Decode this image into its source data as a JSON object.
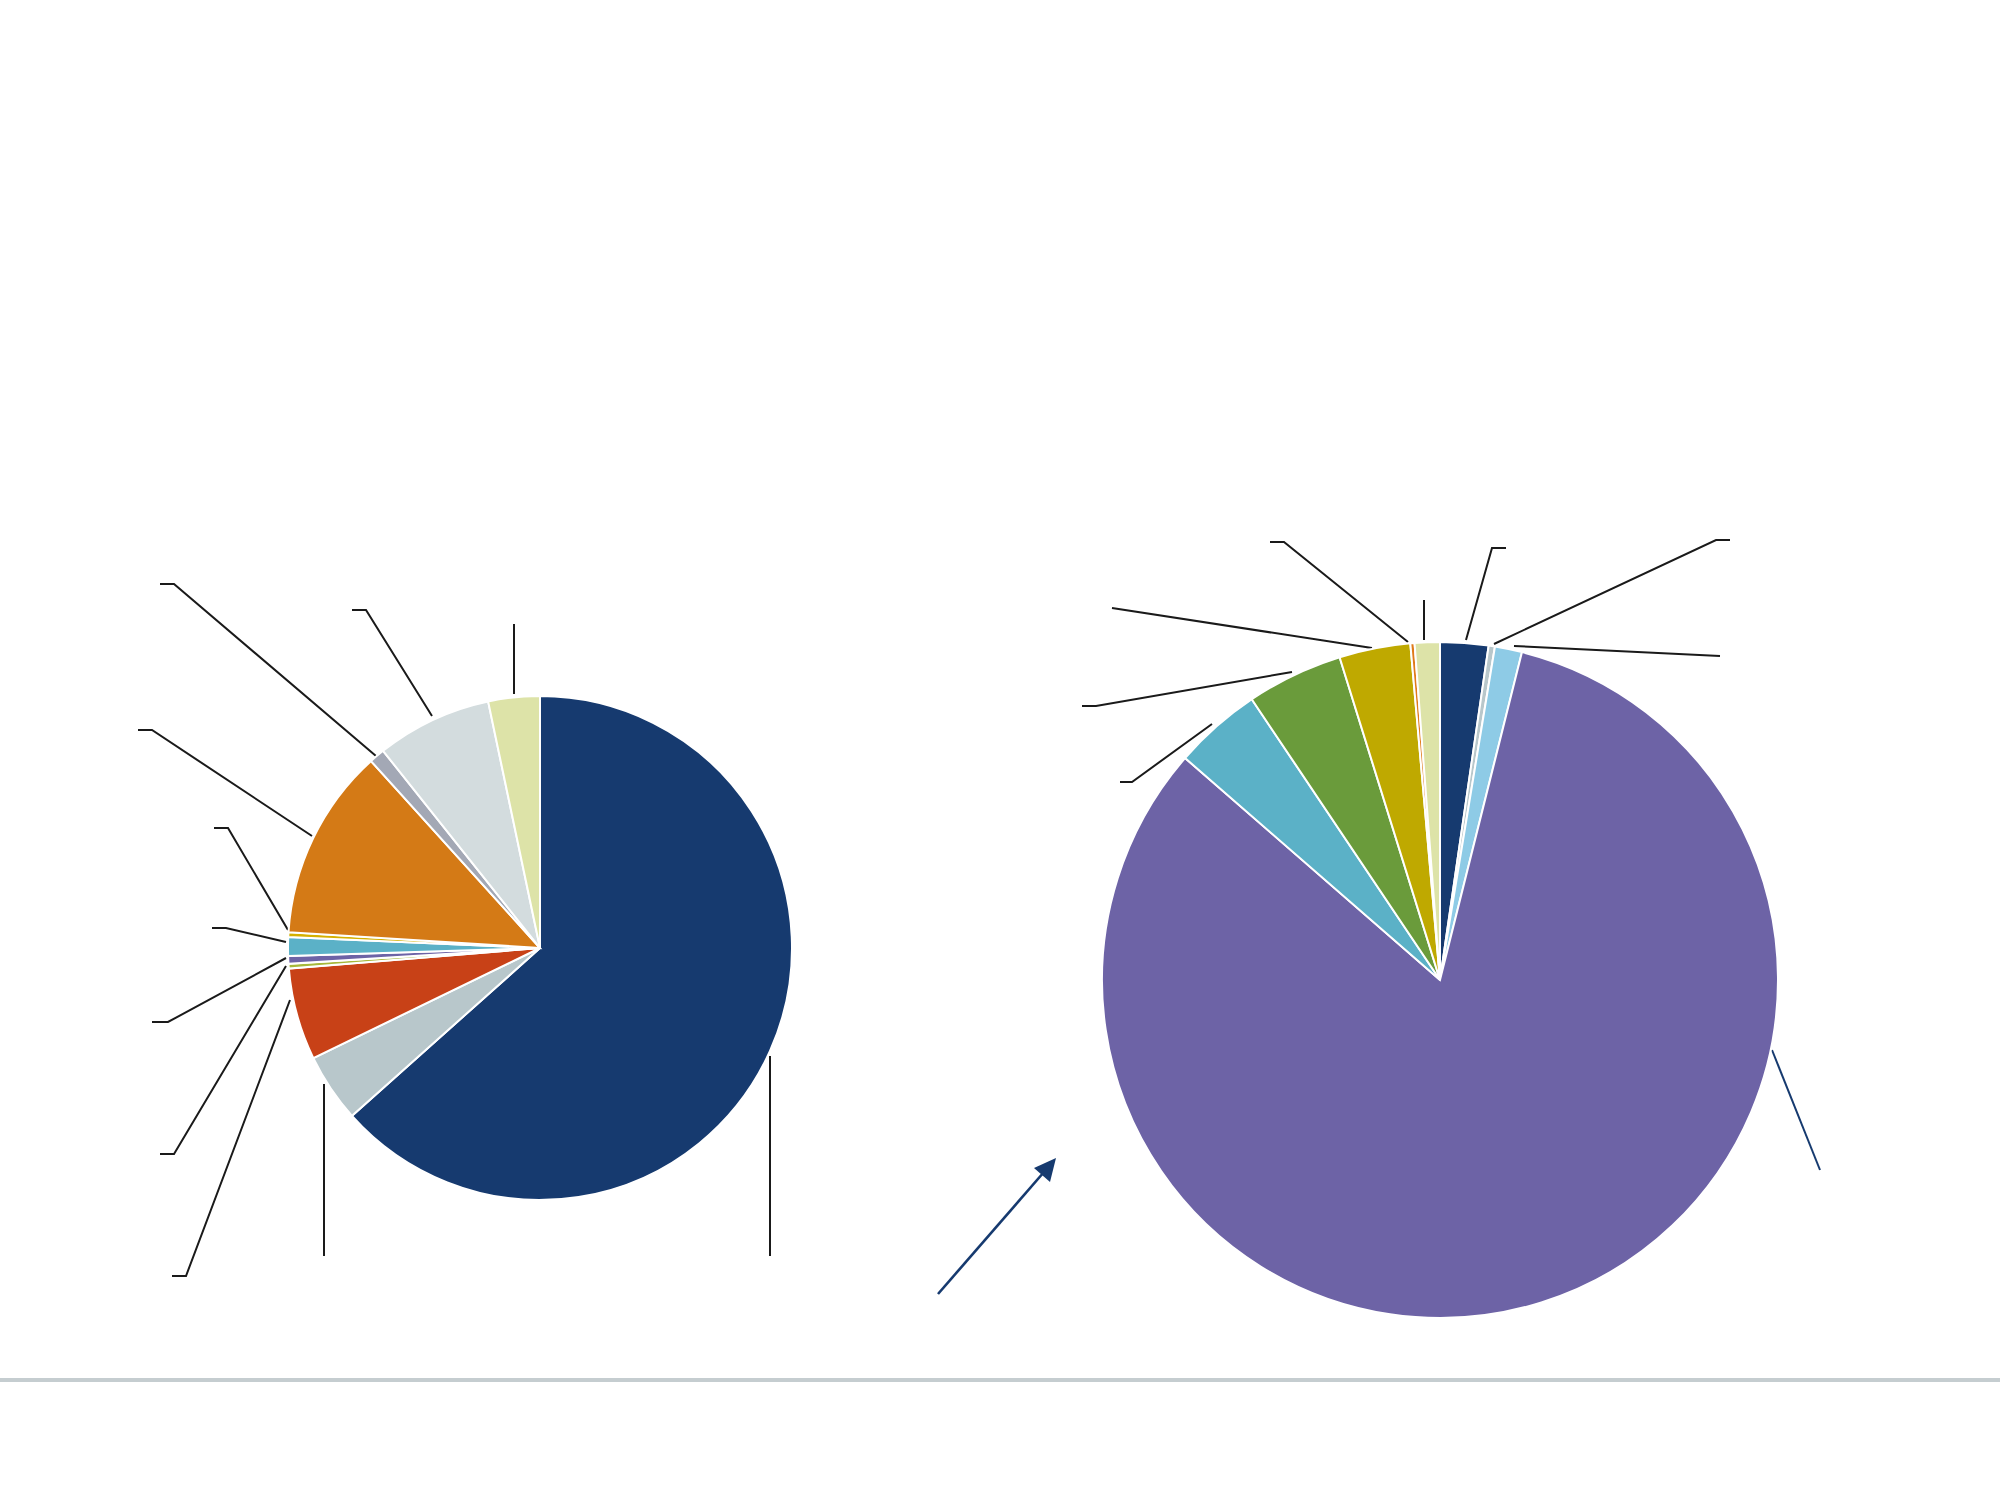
{
  "chart_data": [
    {
      "type": "pie",
      "categories": [
        null,
        null,
        null,
        null,
        null,
        null,
        null,
        null,
        null,
        null,
        null
      ],
      "values": [
        63.4,
        4.4,
        5.9,
        0.3,
        0.5,
        1.2,
        0.3,
        12.3,
        1.0,
        7.4,
        3.3
      ],
      "colors": [
        "#163a6f",
        "#b8c7cb",
        "#c84117",
        "#a7b83a",
        "#6d63a6",
        "#5bb1c7",
        "#d4b000",
        "#d47a16",
        "#a3a8b5",
        "#d3dcde",
        "#dde3a8"
      ]
    },
    {
      "type": "pie",
      "categories": [
        null,
        null,
        null,
        null,
        null,
        null,
        null,
        null,
        null
      ],
      "values": [
        2.3,
        0.3,
        1.3,
        82.5,
        4.2,
        4.6,
        3.4,
        0.2,
        1.2
      ],
      "colors": [
        "#163a6f",
        "#b8c7cb",
        "#8ecbe6",
        "#6d63a6",
        "#5bb1c7",
        "#6a9b3b",
        "#bfa900",
        "#e07a1a",
        "#dde3a8"
      ]
    }
  ]
}
